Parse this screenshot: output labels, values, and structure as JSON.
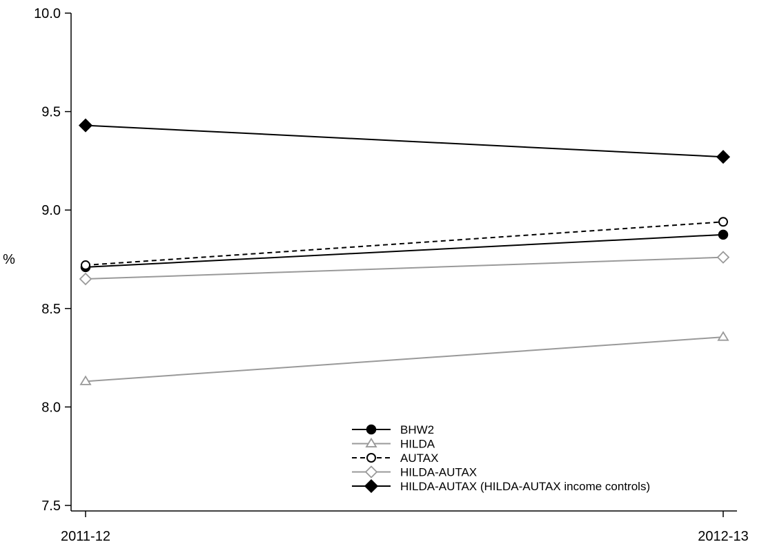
{
  "chart_data": {
    "type": "line",
    "title": "",
    "xlabel": "",
    "ylabel": "%",
    "categories": [
      "2011-12",
      "2012-13"
    ],
    "ylim": [
      7.5,
      10.0
    ],
    "yticks": [
      "7.5",
      "8.0",
      "8.5",
      "9.0",
      "9.5",
      "10.0"
    ],
    "grid": false,
    "legend_position": "bottom-center",
    "series": [
      {
        "name": "BHW2",
        "values": [
          8.71,
          8.875
        ],
        "color": "#000000",
        "dash": "solid",
        "marker": "circle-filled"
      },
      {
        "name": "HILDA",
        "values": [
          8.13,
          8.355
        ],
        "color": "#999999",
        "dash": "solid",
        "marker": "triangle-open"
      },
      {
        "name": "AUTAX",
        "values": [
          8.72,
          8.94
        ],
        "color": "#000000",
        "dash": "dashed",
        "marker": "circle-open"
      },
      {
        "name": "HILDA-AUTAX",
        "values": [
          8.65,
          8.76
        ],
        "color": "#999999",
        "dash": "solid",
        "marker": "diamond-open"
      },
      {
        "name": "HILDA-AUTAX (HILDA-AUTAX income controls)",
        "values": [
          9.43,
          9.27
        ],
        "color": "#000000",
        "dash": "solid",
        "marker": "diamond-filled"
      }
    ]
  }
}
